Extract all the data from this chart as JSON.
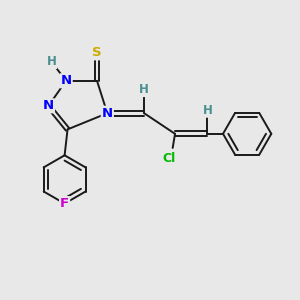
{
  "bg_color": "#e8e8e8",
  "bond_color": "#1a1a1a",
  "N_color": "#0000ff",
  "S_color": "#ccaa00",
  "F_color": "#cc00cc",
  "Cl_color": "#00bb00",
  "H_color": "#4a9090",
  "figsize": [
    3.0,
    3.0
  ],
  "dpi": 100,
  "xlim": [
    0,
    10
  ],
  "ylim": [
    0,
    10
  ]
}
